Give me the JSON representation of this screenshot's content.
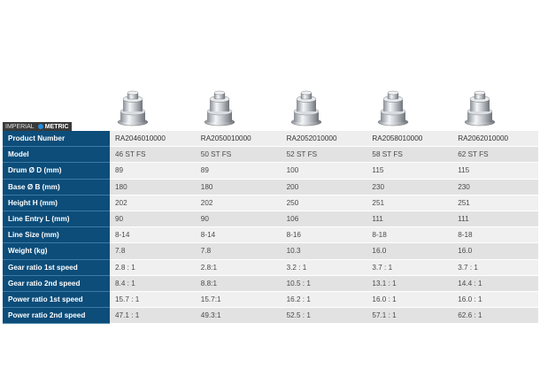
{
  "unit_toggle": {
    "imperial": "IMPERIAL",
    "metric": "METRIC"
  },
  "columns": [
    {
      "product_number": "RA2046010000",
      "model": "46 ST FS",
      "drum_d": "89",
      "base_b": "180",
      "height_h": "202",
      "line_entry_l": "90",
      "line_size": "8-14",
      "weight": "7.8",
      "gear_ratio_1": "2.8 : 1",
      "gear_ratio_2": "8.4 : 1",
      "power_ratio_1": "15.7 : 1",
      "power_ratio_2": "47.1 : 1"
    },
    {
      "product_number": "RA2050010000",
      "model": "50 ST FS",
      "drum_d": "89",
      "base_b": "180",
      "height_h": "202",
      "line_entry_l": "90",
      "line_size": "8-14",
      "weight": "7.8",
      "gear_ratio_1": "2.8:1",
      "gear_ratio_2": "8.8:1",
      "power_ratio_1": "15.7:1",
      "power_ratio_2": "49.3:1"
    },
    {
      "product_number": "RA2052010000",
      "model": "52 ST FS",
      "drum_d": "100",
      "base_b": "200",
      "height_h": "250",
      "line_entry_l": "106",
      "line_size": "8-16",
      "weight": "10.3",
      "gear_ratio_1": "3.2 : 1",
      "gear_ratio_2": "10.5 : 1",
      "power_ratio_1": "16.2 : 1",
      "power_ratio_2": "52.5 : 1"
    },
    {
      "product_number": "RA2058010000",
      "model": "58 ST FS",
      "drum_d": "115",
      "base_b": "230",
      "height_h": "251",
      "line_entry_l": "111",
      "line_size": "8-18",
      "weight": "16.0",
      "gear_ratio_1": "3.7 : 1",
      "gear_ratio_2": "13.1 : 1",
      "power_ratio_1": "16.0 : 1",
      "power_ratio_2": "57.1 : 1"
    },
    {
      "product_number": "RA2062010000",
      "model": "62 ST FS",
      "drum_d": "115",
      "base_b": "230",
      "height_h": "251",
      "line_entry_l": "111",
      "line_size": "8-18",
      "weight": "16.0",
      "gear_ratio_1": "3.7 : 1",
      "gear_ratio_2": "14.4 : 1",
      "power_ratio_1": "16.0 : 1",
      "power_ratio_2": "62.6 : 1"
    }
  ],
  "rows": [
    {
      "key": "product_number",
      "label": "Product Number"
    },
    {
      "key": "model",
      "label": "Model"
    },
    {
      "key": "drum_d",
      "label": "Drum Ø D  (mm)"
    },
    {
      "key": "base_b",
      "label": "Base Ø B  (mm)"
    },
    {
      "key": "height_h",
      "label": "Height H  (mm)"
    },
    {
      "key": "line_entry_l",
      "label": "Line Entry L  (mm)"
    },
    {
      "key": "line_size",
      "label": "Line Size  (mm)"
    },
    {
      "key": "weight",
      "label": "Weight  (kg)"
    },
    {
      "key": "gear_ratio_1",
      "label": "Gear ratio 1st speed"
    },
    {
      "key": "gear_ratio_2",
      "label": "Gear ratio 2nd speed"
    },
    {
      "key": "power_ratio_1",
      "label": "Power ratio 1st speed"
    },
    {
      "key": "power_ratio_2",
      "label": "Power ratio 2nd speed"
    }
  ],
  "colors": {
    "label_bg": "#0c4d7a",
    "accent_dot": "#2a8ad8"
  }
}
